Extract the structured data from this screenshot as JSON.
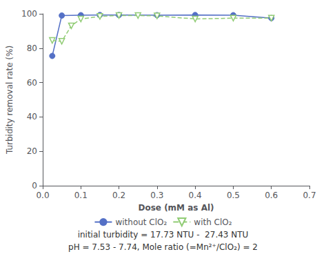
{
  "chart_data": {
    "type": "line",
    "xlabel": "Dose (mM as Al)",
    "ylabel": "Turbidity removal rate (%)",
    "xlim": [
      0,
      0.7
    ],
    "ylim": [
      0,
      100
    ],
    "xticks": [
      {
        "value": 0,
        "label": "0.0"
      },
      0.1,
      0.2,
      0.3,
      0.4,
      0.5,
      0.6,
      0.7
    ],
    "yticks": [
      0,
      20,
      40,
      60,
      80,
      100
    ],
    "grid": false,
    "legend": "bottom",
    "series": [
      {
        "name": "without ClO₂",
        "marker": "circle",
        "line_style": "solid",
        "x": [
          0.025,
          0.05,
          0.1,
          0.15,
          0.2,
          0.3,
          0.4,
          0.5,
          0.6
        ],
        "values": [
          75.5,
          99.0,
          99.2,
          99.3,
          99.3,
          99.2,
          99.3,
          99.2,
          97.5
        ]
      },
      {
        "name": "with ClO₂",
        "marker": "triangle-down",
        "line_style": "dashed",
        "x": [
          0.025,
          0.05,
          0.075,
          0.1,
          0.15,
          0.2,
          0.25,
          0.3,
          0.4,
          0.5,
          0.6
        ],
        "values": [
          84.5,
          84.0,
          93.0,
          97.0,
          98.5,
          99.0,
          99.0,
          98.8,
          97.0,
          97.5,
          97.5
        ]
      }
    ],
    "annotations": [
      "initial turbidity = 17.73 NTU -  27.43 NTU",
      "pH = 7.53 - 7.74, Mole ratio (=Mn²⁺/ClO₂) = 2"
    ]
  }
}
